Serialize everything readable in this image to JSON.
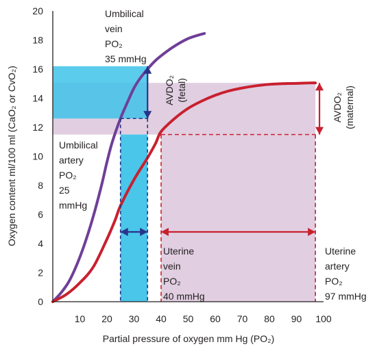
{
  "chart_data": {
    "type": "line",
    "title": "",
    "xlabel": "Partial pressure of oxygen mm Hg (PO₂)",
    "ylabel": "Oxygen content ml/100 ml (CaO₂ or CvO₂)",
    "xlim": [
      0,
      100
    ],
    "ylim": [
      0,
      20
    ],
    "x_ticks": [
      "10",
      "20",
      "30",
      "40",
      "50",
      "60",
      "70",
      "80",
      "90",
      "100"
    ],
    "y_ticks": [
      "0",
      "2",
      "4",
      "6",
      "8",
      "10",
      "12",
      "14",
      "16",
      "18",
      "20"
    ],
    "grid": false,
    "legend": "none",
    "series": [
      {
        "color": "#6f3f98",
        "x": [
          0,
          3,
          6,
          9,
          12,
          15,
          18,
          20,
          22,
          25,
          28,
          30,
          32,
          35,
          38,
          42,
          46,
          50,
          54,
          56
        ],
        "y": [
          0,
          0.6,
          1.4,
          2.6,
          4.1,
          5.9,
          8.0,
          9.6,
          11.0,
          12.6,
          13.9,
          14.7,
          15.3,
          16.0,
          16.6,
          17.2,
          17.7,
          18.1,
          18.35,
          18.45
        ]
      },
      {
        "color": "#c8202f",
        "x": [
          0,
          5,
          10,
          15,
          20,
          23,
          25,
          30,
          35,
          38,
          40,
          45,
          50,
          55,
          60,
          65,
          70,
          75,
          80,
          85,
          90,
          95,
          97
        ],
        "y": [
          0,
          0.5,
          1.3,
          2.4,
          4.3,
          5.6,
          6.6,
          8.4,
          9.9,
          10.9,
          11.7,
          12.6,
          13.3,
          13.8,
          14.2,
          14.5,
          14.7,
          14.85,
          14.95,
          15.0,
          15.02,
          15.05,
          15.05
        ]
      }
    ],
    "annotations": {
      "umbilical_vein": [
        "Umbilical",
        "vein",
        "PO₂",
        "35 mmHg"
      ],
      "umbilical_artery": [
        "Umbilical",
        "artery",
        "PO₂",
        "25",
        "mmHg"
      ],
      "uterine_vein": [
        "Uterine",
        "vein",
        "PO₂",
        "40 mmHg"
      ],
      "uterine_artery": [
        "Uterine",
        "artery",
        "PO₂",
        "97 mmHg"
      ],
      "avdo_fetal": [
        "AVDO₂",
        "(fetal)"
      ],
      "avdo_maternal": [
        "AVDO₂",
        "(maternal)"
      ]
    },
    "regions": {
      "fetal_band_y": [
        12.6,
        16.2
      ],
      "maternal_band_y": [
        11.5,
        15.05
      ],
      "fetal_box_x": [
        25,
        35
      ],
      "maternal_box_x": [
        40,
        97
      ]
    },
    "colors": {
      "cyan": "#3fc3e9",
      "mauve": "#c9a6c8",
      "fetal_arrow": "#29338a",
      "maternal_arrow": "#c8202f"
    }
  }
}
